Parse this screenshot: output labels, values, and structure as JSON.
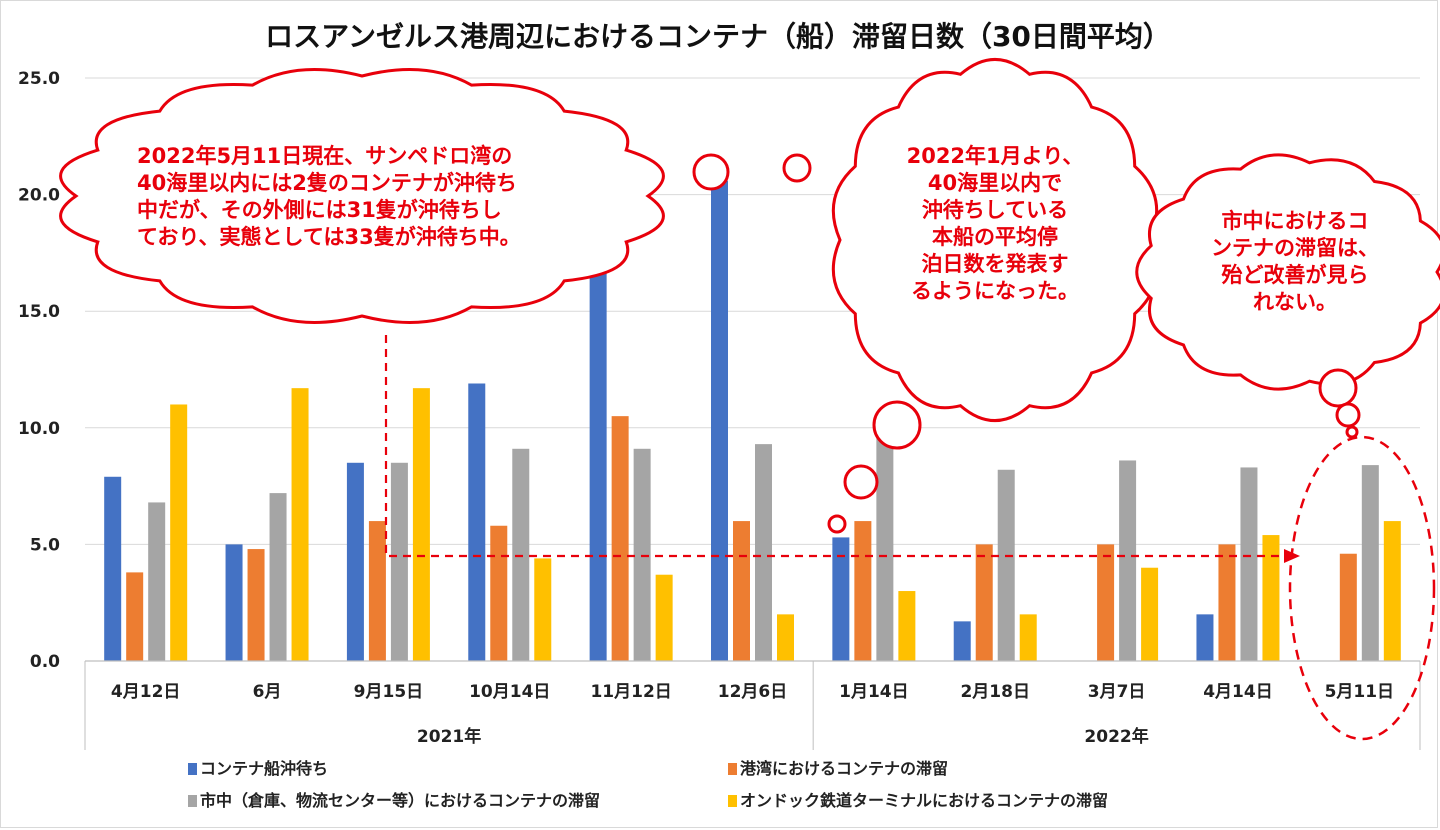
{
  "chart_data": {
    "type": "bar",
    "title": "ロスアンゼルス港周辺におけるコンテナ（船）滞留日数（30日間平均）",
    "ylim": [
      0,
      25
    ],
    "yticks": [
      "0.0",
      "5.0",
      "10.0",
      "15.0",
      "20.0",
      "25.0"
    ],
    "categories": [
      "4月12日",
      "6月",
      "9月15日",
      "10月14日",
      "11月12日",
      "12月6日",
      "1月14日",
      "2月18日",
      "3月7日",
      "4月14日",
      "5月11日"
    ],
    "year_groups": [
      {
        "label": "2021年",
        "count": 6
      },
      {
        "label": "2022年",
        "count": 5
      }
    ],
    "series": [
      {
        "name": "コンテナ船沖待ち",
        "color": "#4472c4",
        "values": [
          7.9,
          5.0,
          8.5,
          11.9,
          16.9,
          20.6,
          5.3,
          1.7,
          null,
          2.0,
          null
        ]
      },
      {
        "name": "港湾におけるコンテナの滞留",
        "color": "#ed7d31",
        "values": [
          3.8,
          4.8,
          6.0,
          5.8,
          10.5,
          6.0,
          6.0,
          5.0,
          5.0,
          5.0,
          4.6
        ]
      },
      {
        "name": "市中（倉庫、物流センター等）におけるコンテナの滞留",
        "color": "#a5a5a5",
        "values": [
          6.8,
          7.2,
          8.5,
          9.1,
          9.1,
          9.3,
          9.6,
          8.2,
          8.6,
          8.3,
          8.4
        ]
      },
      {
        "name": "オンドック鉄道ターミナルにおけるコンテナの滞留",
        "color": "#ffc000",
        "values": [
          11.0,
          11.7,
          11.7,
          4.4,
          3.7,
          2.0,
          3.0,
          2.0,
          4.0,
          5.4,
          6.0
        ]
      }
    ],
    "annotations": [
      {
        "name": "note-may-2022",
        "lines": [
          "2022年5月11日現在、サンペドロ湾の",
          "40海里以内には2隻のコンテナが沖待ち",
          "中だが、その外側には31隻が沖待ちし",
          "ており、実態としては33隻が沖待ち中。"
        ]
      },
      {
        "name": "note-jan-2022",
        "lines": [
          "2022年1月より、",
          "40海里以内で",
          "沖待ちしている",
          "本船の平均停",
          "泊日数を発表す",
          "るようになった。"
        ]
      },
      {
        "name": "note-city",
        "lines": [
          "市中におけるコ",
          "ンテナの滞留は、",
          "殆ど改善が見ら",
          "れない。"
        ]
      }
    ]
  }
}
